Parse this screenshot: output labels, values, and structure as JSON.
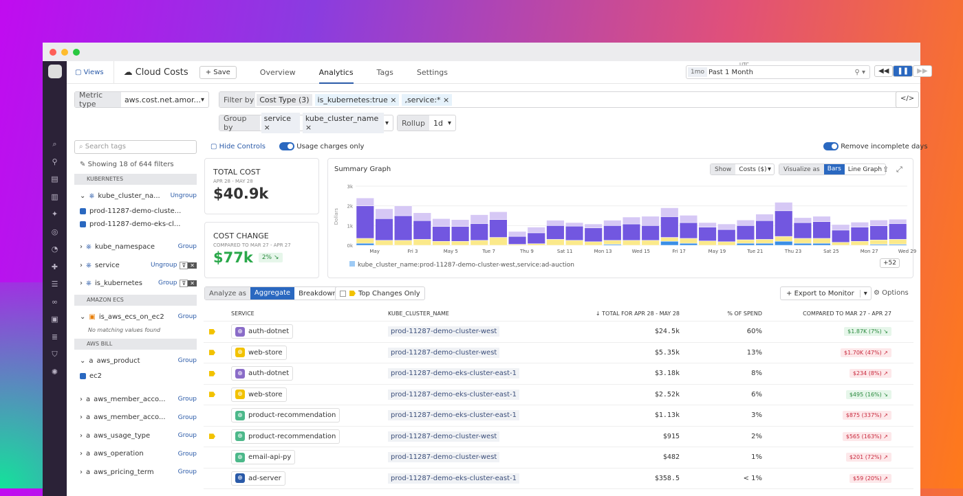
{
  "header": {
    "views": "Views",
    "title": "Cloud Costs",
    "save": "Save",
    "tabs": [
      "Overview",
      "Analytics",
      "Tags",
      "Settings"
    ],
    "active_tab": "Analytics",
    "tz": "UTC",
    "time_badge": "1mo",
    "time_range": "Past 1 Month"
  },
  "query": {
    "metric_label": "Metric type",
    "metric_value": "aws.cost.net.amor...",
    "filter_label": "Filter by",
    "filter_cost_type": "Cost Type (3)",
    "filters": [
      "is_kubernetes:true",
      "service:*"
    ],
    "group_label": "Group by",
    "groups": [
      "service",
      "kube_cluster_name"
    ],
    "rollup_label": "Rollup",
    "rollup_value": "1d"
  },
  "controls": {
    "hide": "Hide Controls",
    "usage": "Usage charges only",
    "remove": "Remove incomplete days"
  },
  "left": {
    "search_placeholder": "Search tags",
    "showing": "Showing 18 of 644 filters",
    "sec_k8s": "KUBERNETES",
    "kube_cluster": "kube_cluster_na...",
    "ungroup": "Ungroup",
    "group": "Group",
    "kc_vals": [
      "prod-11287-demo-cluste...",
      "prod-11287-demo-eks-cl..."
    ],
    "kube_namespace": "kube_namespace",
    "service": "service",
    "is_kubernetes": "is_kubernetes",
    "sec_ecs": "AMAZON ECS",
    "is_aws_ecs": "is_aws_ecs_on_ec2",
    "no_match": "No matching values found",
    "sec_bill": "AWS BILL",
    "aws_product": "aws_product",
    "ec2": "ec2",
    "bill_tags": [
      "aws_member_acco...",
      "aws_member_acco...",
      "aws_usage_type",
      "aws_operation",
      "aws_pricing_term"
    ]
  },
  "total": {
    "label": "TOTAL COST",
    "range": "APR 28 - MAY 28",
    "value": "$40.9k"
  },
  "change": {
    "label": "COST CHANGE",
    "range": "COMPARED TO MAR 27 - APR 27",
    "value": "$77k",
    "pct": "2%"
  },
  "graph": {
    "title": "Summary Graph",
    "show": "Show",
    "show_val": "Costs ($)",
    "vis": "Visualize as",
    "bars": "Bars",
    "line": "Line Graph",
    "legend": "kube_cluster_name:prod-11287-demo-cluster-west,service:ad-auction",
    "more": "+52"
  },
  "chart_data": {
    "type": "bar",
    "stacked": true,
    "ylabel": "Dollars",
    "ylim": [
      0,
      3000
    ],
    "yticks": [
      "0k",
      "1k",
      "2k",
      "3k"
    ],
    "xticks": [
      "May",
      "Fri 3",
      "May 5",
      "Tue 7",
      "Thu 9",
      "Sat 11",
      "Mon 13",
      "Wed 15",
      "Fri 17",
      "May 19",
      "Tue 21",
      "Thu 23",
      "Sat 25",
      "Mon 27",
      "Wed 29"
    ],
    "colors": [
      "#3a8ee6",
      "#fbe98a",
      "#7257e0",
      "#d6c8f5"
    ],
    "series": [
      {
        "values": [
          100,
          0,
          0,
          0,
          0,
          0,
          0,
          0,
          0,
          0,
          0,
          0,
          0,
          50,
          0,
          0,
          200,
          100,
          0,
          0,
          100,
          100,
          200,
          100,
          100,
          0,
          0,
          50,
          50
        ]
      },
      {
        "values": [
          250,
          250,
          250,
          300,
          200,
          200,
          250,
          400,
          50,
          80,
          300,
          250,
          180,
          200,
          250,
          250,
          200,
          250,
          220,
          180,
          180,
          200,
          250,
          250,
          250,
          150,
          200,
          220,
          250
        ]
      },
      {
        "values": [
          1650,
          1100,
          1250,
          950,
          750,
          750,
          850,
          900,
          400,
          550,
          700,
          720,
          700,
          750,
          830,
          750,
          1050,
          800,
          700,
          620,
          720,
          950,
          1300,
          800,
          850,
          620,
          720,
          720,
          800
        ]
      },
      {
        "values": [
          400,
          500,
          500,
          400,
          400,
          350,
          450,
          400,
          250,
          290,
          270,
          180,
          200,
          270,
          350,
          470,
          450,
          370,
          230,
          280,
          280,
          330,
          430,
          250,
          270,
          280,
          250,
          290,
          220
        ]
      }
    ]
  },
  "table": {
    "analyze": "Analyze as",
    "aggregate": "Aggregate",
    "breakdown": "Breakdown",
    "top_changes": "Top Changes Only",
    "export": "Export to Monitor",
    "options": "Options",
    "headers": [
      "SERVICE",
      "KUBE_CLUSTER_NAME",
      "TOTAL FOR APR 28 - MAY 28",
      "% OF SPEND",
      "COMPARED TO MAR 27 - APR 27"
    ],
    "rows": [
      {
        "service": "auth-dotnet",
        "color": "#8a6cc8",
        "cluster": "prod-11287-demo-cluster-west",
        "total": "$24.5k",
        "pct": "60%",
        "cmp": "$1.87K (7%) ↘",
        "dir": "dn",
        "flag": true
      },
      {
        "service": "web-store",
        "color": "#f2c200",
        "cluster": "prod-11287-demo-cluster-west",
        "total": "$5.35k",
        "pct": "13%",
        "cmp": "$1.70K (47%) ↗",
        "dir": "up",
        "flag": true
      },
      {
        "service": "auth-dotnet",
        "color": "#8a6cc8",
        "cluster": "prod-11287-demo-eks-cluster-east-1",
        "total": "$3.18k",
        "pct": "8%",
        "cmp": "$234 (8%) ↗",
        "dir": "up",
        "flag": true
      },
      {
        "service": "web-store",
        "color": "#f2c200",
        "cluster": "prod-11287-demo-eks-cluster-east-1",
        "total": "$2.52k",
        "pct": "6%",
        "cmp": "$495 (16%) ↘",
        "dir": "dn",
        "flag": true
      },
      {
        "service": "product-recommendation",
        "color": "#4cb88a",
        "cluster": "prod-11287-demo-eks-cluster-east-1",
        "total": "$1.13k",
        "pct": "3%",
        "cmp": "$875 (337%) ↗",
        "dir": "up",
        "flag": false
      },
      {
        "service": "product-recommendation",
        "color": "#4cb88a",
        "cluster": "prod-11287-demo-cluster-west",
        "total": "$915",
        "pct": "2%",
        "cmp": "$565 (163%) ↗",
        "dir": "up",
        "flag": true
      },
      {
        "service": "email-api-py",
        "color": "#4cb88a",
        "cluster": "prod-11287-demo-cluster-west",
        "total": "$482",
        "pct": "1%",
        "cmp": "$201 (72%) ↗",
        "dir": "up",
        "flag": false
      },
      {
        "service": "ad-server",
        "color": "#2a5aa8",
        "cluster": "prod-11287-demo-eks-cluster-east-1",
        "total": "$358.5",
        "pct": "< 1%",
        "cmp": "$59 (20%) ↗",
        "dir": "up",
        "flag": false
      }
    ]
  }
}
